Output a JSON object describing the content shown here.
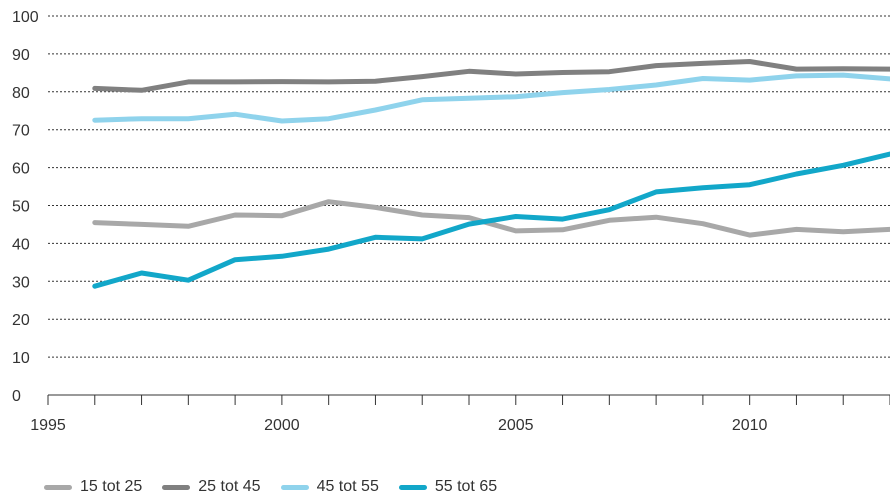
{
  "chart_data": {
    "type": "line",
    "title": "",
    "xlabel": "",
    "ylabel": "",
    "xlim": [
      1995,
      2013
    ],
    "ylim": [
      0,
      100
    ],
    "x_ticks": [
      1995,
      2000,
      2005,
      2010
    ],
    "y_ticks": [
      0,
      10,
      20,
      30,
      40,
      50,
      60,
      70,
      80,
      90,
      100
    ],
    "grid": "horizontal dotted",
    "legend_position": "bottom-left",
    "x": [
      1996,
      1997,
      1998,
      1999,
      2000,
      2001,
      2002,
      2003,
      2004,
      2005,
      2006,
      2007,
      2008,
      2009,
      2010,
      2011,
      2012,
      2013
    ],
    "series": [
      {
        "name": "15 tot 25",
        "color": "#a8a8a8",
        "values": [
          45.5,
          45,
          44.5,
          47.5,
          47.3,
          51,
          49.5,
          47.5,
          46.8,
          43.3,
          43.6,
          46.1,
          46.9,
          45.2,
          42.2,
          43.7,
          43.1,
          43.7
        ]
      },
      {
        "name": "25 tot 45",
        "color": "#808080",
        "values": [
          80.9,
          80.4,
          82.6,
          82.6,
          82.7,
          82.6,
          82.8,
          84,
          85.4,
          84.7,
          85.1,
          85.3,
          86.9,
          87.5,
          88,
          86,
          86.1,
          86
        ]
      },
      {
        "name": "45 tot 55",
        "color": "#8fd3ec",
        "values": [
          72.5,
          72.9,
          72.9,
          74.1,
          72.3,
          72.9,
          75.2,
          77.9,
          78.3,
          78.7,
          79.8,
          80.6,
          81.8,
          83.5,
          83.1,
          84.2,
          84.4,
          83.4
        ]
      },
      {
        "name": "55 tot 65",
        "color": "#12a7c9",
        "values": [
          28.7,
          32.2,
          30.3,
          35.7,
          36.6,
          38.5,
          41.6,
          41.2,
          45.1,
          47.1,
          46.4,
          48.9,
          53.6,
          54.7,
          55.5,
          58.3,
          60.6,
          63.6
        ]
      }
    ]
  }
}
